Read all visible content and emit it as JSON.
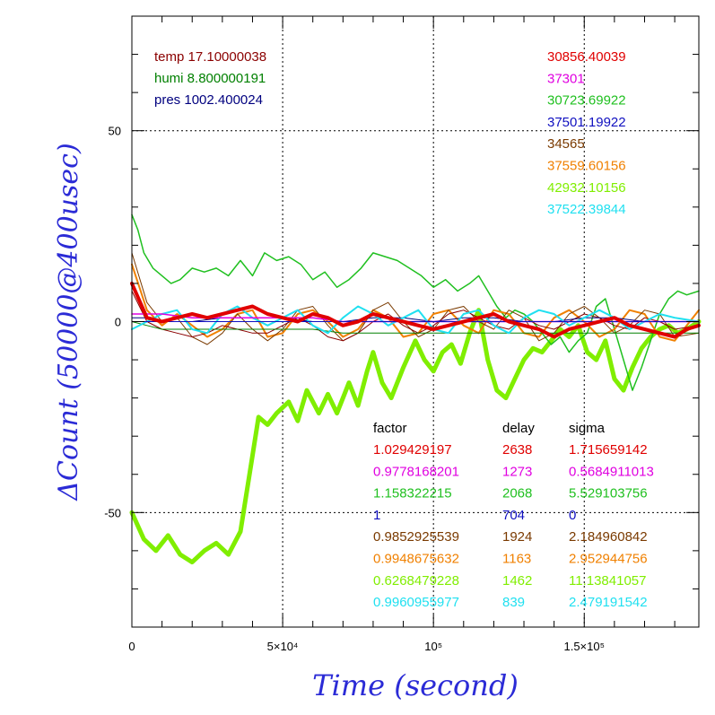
{
  "chart_data": {
    "type": "line",
    "xlabel": "Time (second)",
    "ylabel": "ΔCount (50000@400usec)",
    "xlim": [
      0,
      188000
    ],
    "ylim": [
      -80,
      80
    ],
    "x_ticks": [
      {
        "value": 0,
        "label": "0"
      },
      {
        "value": 50000,
        "label": "5×10⁴"
      },
      {
        "value": 100000,
        "label": "10⁵"
      },
      {
        "value": 150000,
        "label": "1.5×10⁵"
      }
    ],
    "y_ticks": [
      {
        "value": 50,
        "label": "50"
      },
      {
        "value": 0,
        "label": "0"
      },
      {
        "value": -50,
        "label": "-50"
      }
    ],
    "grid": true,
    "env_legend": [
      {
        "text": "temp 17.10000038",
        "color": "#8b0000"
      },
      {
        "text": "humi 8.800000191",
        "color": "#008000"
      },
      {
        "text": "pres 1002.400024",
        "color": "#00007f"
      }
    ],
    "mean_legend": [
      {
        "text": "30856.40039",
        "color": "#e00000"
      },
      {
        "text": "37301",
        "color": "#e000e0"
      },
      {
        "text": "30723.69922",
        "color": "#20c020"
      },
      {
        "text": "37501.19922",
        "color": "#1010c0"
      },
      {
        "text": "34565",
        "color": "#7a3a00"
      },
      {
        "text": "37559.60156",
        "color": "#f08000"
      },
      {
        "text": "42932.10156",
        "color": "#80ee00"
      },
      {
        "text": "37522.39844",
        "color": "#20e0f0"
      }
    ],
    "param_table": {
      "headers": [
        "factor",
        "delay",
        "sigma"
      ],
      "rows": [
        {
          "factor": "1.029429197",
          "delay": "2638",
          "sigma": "1.715659142",
          "color": "#e00000"
        },
        {
          "factor": "0.9778168201",
          "delay": "1273",
          "sigma": "0.5684911013",
          "color": "#e000e0"
        },
        {
          "factor": "1.158322215",
          "delay": "2068",
          "sigma": "5.529103756",
          "color": "#20c020"
        },
        {
          "factor": "1",
          "delay": "704",
          "sigma": "0",
          "color": "#1010c0"
        },
        {
          "factor": "0.9852925539",
          "delay": "1924",
          "sigma": "2.184960842",
          "color": "#7a3a00"
        },
        {
          "factor": "0.9948675632",
          "delay": "1163",
          "sigma": "2.952944756",
          "color": "#f08000"
        },
        {
          "factor": "0.6268479228",
          "delay": "1462",
          "sigma": "11.13841057",
          "color": "#80ee00"
        },
        {
          "factor": "0.9960955977",
          "delay": "839",
          "sigma": "2.479191542",
          "color": "#20e0f0"
        }
      ]
    },
    "series": [
      {
        "color": "#80ee00",
        "stroke_width": 5,
        "x": [
          0,
          4000,
          8000,
          12000,
          16000,
          20000,
          24000,
          28000,
          32000,
          36000,
          40000,
          42000,
          45000,
          48000,
          52000,
          55000,
          58000,
          62000,
          65000,
          68000,
          72000,
          75000,
          78000,
          80000,
          83000,
          86000,
          90000,
          94000,
          97000,
          100000,
          103000,
          106000,
          109000,
          112000,
          115000,
          118000,
          121000,
          124000,
          127000,
          130000,
          133000,
          136000,
          139000,
          142000,
          145000,
          148000,
          151000,
          154000,
          157000,
          160000,
          163000,
          166000,
          169000,
          172000,
          175000,
          178000,
          181000,
          184000,
          188000
        ],
        "y": [
          -50,
          -57,
          -60,
          -56,
          -61,
          -63,
          -60,
          -58,
          -61,
          -55,
          -35,
          -25,
          -27,
          -24,
          -21,
          -26,
          -18,
          -24,
          -19,
          -24,
          -16,
          -22,
          -13,
          -8,
          -16,
          -20,
          -12,
          -5,
          -10,
          -13,
          -8,
          -6,
          -11,
          -3,
          3,
          -10,
          -18,
          -20,
          -15,
          -10,
          -7,
          -8,
          -5,
          -2,
          -4,
          -1,
          -8,
          -10,
          -5,
          -15,
          -18,
          -12,
          -7,
          -4,
          -2,
          -1,
          -3,
          -2,
          0
        ]
      },
      {
        "color": "#20c020",
        "stroke_width": 1.5,
        "x": [
          0,
          2000,
          4000,
          7000,
          10000,
          13000,
          16000,
          20000,
          24000,
          28000,
          32000,
          36000,
          40000,
          44000,
          48000,
          52000,
          56000,
          60000,
          64000,
          68000,
          72000,
          76000,
          80000,
          84000,
          88000,
          92000,
          96000,
          100000,
          104000,
          108000,
          112000,
          115000,
          118000,
          121000,
          124000,
          127000,
          130000,
          133000,
          136000,
          139000,
          142000,
          145000,
          148000,
          151000,
          154000,
          157000,
          160000,
          163000,
          166000,
          169000,
          172000,
          175000,
          178000,
          181000,
          184000,
          188000
        ],
        "y": [
          28,
          24,
          18,
          14,
          12,
          10,
          11,
          14,
          13,
          14,
          12,
          16,
          12,
          18,
          16,
          17,
          15,
          11,
          13,
          9,
          11,
          14,
          18,
          17,
          16,
          14,
          12,
          9,
          11,
          8,
          10,
          12,
          8,
          4,
          1,
          3,
          2,
          0,
          -3,
          -6,
          -4,
          -8,
          -5,
          -3,
          4,
          6,
          -2,
          -10,
          -18,
          -12,
          -5,
          2,
          6,
          8,
          7,
          8
        ]
      },
      {
        "color": "#f08000",
        "stroke_width": 2,
        "x": [
          0,
          5000,
          10000,
          15000,
          20000,
          25000,
          30000,
          35000,
          40000,
          45000,
          50000,
          55000,
          60000,
          65000,
          70000,
          75000,
          80000,
          85000,
          90000,
          95000,
          100000,
          105000,
          110000,
          115000,
          120000,
          125000,
          130000,
          135000,
          140000,
          145000,
          150000,
          155000,
          160000,
          165000,
          170000,
          175000,
          180000,
          188000
        ],
        "y": [
          15,
          3,
          -1,
          2,
          -1,
          -4,
          -2,
          2,
          3,
          -4,
          -3,
          2,
          3,
          0,
          -4,
          -2,
          3,
          1,
          -4,
          -3,
          2,
          3,
          -1,
          -3,
          3,
          2,
          -3,
          -4,
          1,
          3,
          0,
          -4,
          -2,
          3,
          2,
          -4,
          -5,
          3
        ]
      },
      {
        "color": "#7a3a00",
        "stroke_width": 1,
        "x": [
          0,
          5000,
          10000,
          15000,
          20000,
          25000,
          30000,
          35000,
          40000,
          45000,
          50000,
          55000,
          60000,
          65000,
          70000,
          75000,
          80000,
          85000,
          90000,
          95000,
          100000,
          105000,
          110000,
          115000,
          120000,
          125000,
          130000,
          135000,
          140000,
          145000,
          150000,
          155000,
          160000,
          165000,
          170000,
          175000,
          180000,
          188000
        ],
        "y": [
          18,
          5,
          0,
          1,
          -4,
          -6,
          -3,
          2,
          -2,
          -5,
          -2,
          3,
          4,
          -1,
          -5,
          -3,
          3,
          5,
          0,
          -4,
          -2,
          3,
          4,
          0,
          -2,
          3,
          1,
          -5,
          -3,
          2,
          4,
          1,
          -3,
          -1,
          3,
          2,
          -4,
          -3
        ]
      },
      {
        "color": "#8b0000",
        "stroke_width": 1,
        "x": [
          0,
          5000,
          10000,
          15000,
          20000,
          25000,
          30000,
          35000,
          40000,
          45000,
          50000,
          55000,
          60000,
          65000,
          70000,
          75000,
          80000,
          85000,
          90000,
          95000,
          100000,
          105000,
          110000,
          115000,
          120000,
          125000,
          130000,
          135000,
          140000,
          145000,
          150000,
          155000,
          160000,
          165000,
          170000,
          175000,
          180000,
          188000
        ],
        "y": [
          8,
          0,
          -2,
          -3,
          -4,
          -3,
          -1,
          -2,
          -3,
          -3,
          -1,
          1,
          -1,
          -4,
          -5,
          -3,
          0,
          2,
          -1,
          -3,
          -1,
          2,
          3,
          1,
          -1,
          -2,
          1,
          -1,
          -2,
          0,
          2,
          1,
          -1,
          -2,
          1,
          0,
          -2,
          -1
        ]
      },
      {
        "color": "#008000",
        "stroke_width": 1,
        "x": [
          0,
          5000,
          10000,
          20000,
          30000,
          40000,
          50000,
          60000,
          70000,
          80000,
          90000,
          100000,
          110000,
          120000,
          130000,
          140000,
          150000,
          160000,
          170000,
          180000,
          188000
        ],
        "y": [
          0,
          -1,
          -2,
          -2,
          -2,
          -2,
          -2,
          -2,
          -3,
          -3,
          -3,
          -3,
          -3,
          -3,
          -3,
          -3,
          -3,
          -3,
          -3,
          -3,
          -3
        ]
      },
      {
        "color": "#00007f",
        "stroke_width": 1,
        "x": [
          0,
          5000,
          10000,
          20000,
          30000,
          40000,
          50000,
          60000,
          70000,
          80000,
          90000,
          100000,
          110000,
          120000,
          130000,
          140000,
          150000,
          160000,
          170000,
          180000,
          188000
        ],
        "y": [
          1,
          1,
          0,
          0,
          1,
          1,
          1,
          0,
          0,
          1,
          1,
          0,
          1,
          1,
          0,
          0,
          1,
          1,
          0,
          0,
          0
        ]
      },
      {
        "color": "#20e0f0",
        "stroke_width": 2,
        "x": [
          0,
          5000,
          10000,
          15000,
          20000,
          25000,
          30000,
          35000,
          40000,
          45000,
          50000,
          55000,
          60000,
          65000,
          70000,
          75000,
          80000,
          85000,
          90000,
          95000,
          100000,
          105000,
          110000,
          115000,
          120000,
          125000,
          130000,
          135000,
          140000,
          145000,
          150000,
          155000,
          160000,
          165000,
          170000,
          175000,
          180000,
          188000
        ],
        "y": [
          -2,
          0,
          2,
          3,
          -2,
          -3,
          2,
          4,
          1,
          -1,
          1,
          3,
          -1,
          -3,
          1,
          4,
          2,
          -1,
          1,
          3,
          -2,
          -3,
          2,
          3,
          -1,
          -3,
          1,
          3,
          2,
          -1,
          1,
          3,
          1,
          -2,
          0,
          2,
          1,
          0
        ]
      },
      {
        "color": "#e000e0",
        "stroke_width": 1.5,
        "x": [
          0,
          10000,
          20000,
          30000,
          40000,
          50000,
          60000,
          70000,
          80000,
          90000,
          100000,
          110000,
          120000,
          130000,
          140000,
          150000,
          160000,
          170000,
          180000,
          188000
        ],
        "y": [
          2,
          2,
          1,
          1,
          1,
          1,
          1,
          0,
          0,
          0,
          0,
          0,
          0,
          0,
          0,
          0,
          0,
          0,
          0,
          0
        ]
      },
      {
        "color": "#1010c0",
        "stroke_width": 1,
        "x": [
          0,
          188000
        ],
        "y": [
          0,
          0
        ]
      },
      {
        "color": "#e00000",
        "stroke_width": 4,
        "x": [
          0,
          5000,
          10000,
          15000,
          20000,
          25000,
          30000,
          35000,
          40000,
          45000,
          50000,
          55000,
          60000,
          65000,
          70000,
          75000,
          80000,
          85000,
          90000,
          95000,
          100000,
          105000,
          110000,
          115000,
          120000,
          125000,
          130000,
          135000,
          140000,
          145000,
          150000,
          155000,
          160000,
          165000,
          170000,
          175000,
          180000,
          184000,
          188000
        ],
        "y": [
          10,
          1,
          0,
          1,
          2,
          1,
          2,
          3,
          4,
          2,
          1,
          0,
          2,
          1,
          -1,
          0,
          2,
          1,
          0,
          -1,
          -2,
          -1,
          0,
          1,
          2,
          0,
          -1,
          -2,
          -4,
          -2,
          -1,
          0,
          1,
          -1,
          -2,
          -3,
          -4,
          -2,
          -1
        ]
      }
    ]
  }
}
